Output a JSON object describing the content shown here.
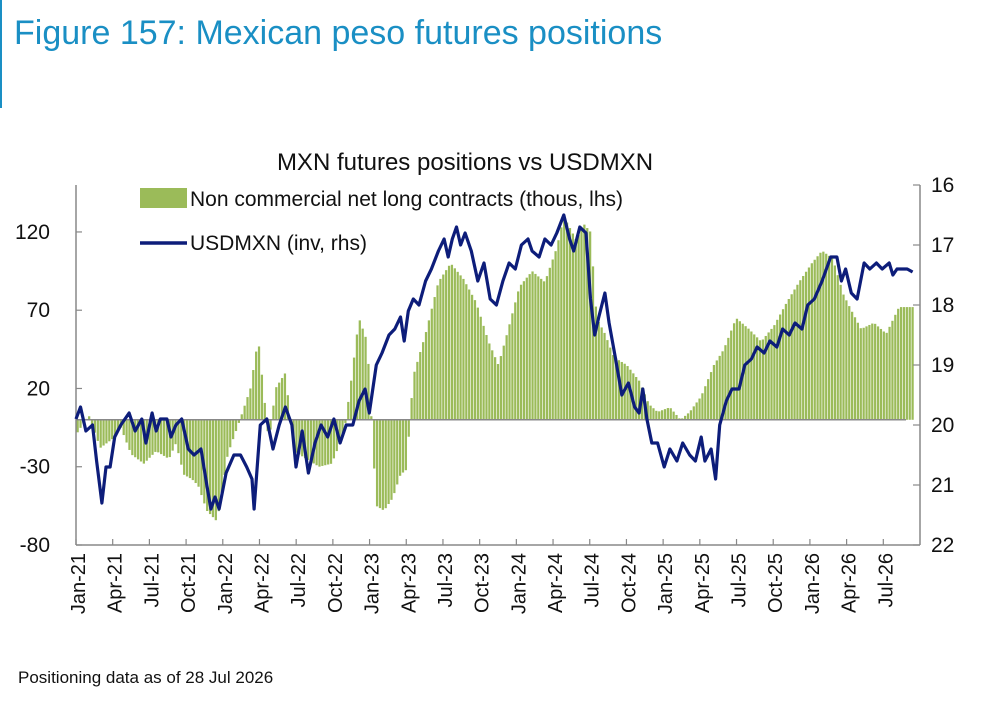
{
  "figure_title": "Figure 157: Mexican peso futures positions",
  "footnote": "Positioning data as of 28 Jul 2026",
  "colors": {
    "bars": "#9bbb59",
    "line": "#0d1d7a",
    "title": "#1a8fc4"
  },
  "chart_data": {
    "type": "bar+line",
    "title": "MXN futures positions  vs USDMXN",
    "legend": [
      "Non commercial net long contracts (thous, lhs)",
      "USDMXN (inv, rhs)"
    ],
    "legend_position": "top",
    "left_axis": {
      "min": -80,
      "max": 150,
      "ticks": [
        120,
        70,
        20,
        -30,
        -80
      ]
    },
    "right_axis": {
      "min": 16,
      "max": 22,
      "inverted": true,
      "ticks": [
        16,
        17,
        18,
        19,
        20,
        21,
        22
      ]
    },
    "x_ticks": [
      "Jan-21",
      "Apr-21",
      "Jul-21",
      "Oct-21",
      "Jan-22",
      "Apr-22",
      "Jul-22",
      "Oct-22",
      "Jan-23",
      "Apr-23",
      "Jul-23",
      "Oct-23",
      "Jan-24",
      "Apr-24",
      "Jul-24",
      "Oct-24",
      "Jan-25",
      "Apr-25",
      "Jul-25",
      "Oct-25",
      "Jan-26",
      "Apr-26",
      "Jul-26"
    ],
    "x_start": "2021-01-01",
    "x_end": "2026-08-15",
    "series": [
      {
        "name": "Non commercial net long contracts (thous, lhs)",
        "type": "bar",
        "points": [
          [
            "2021-01-05",
            -8
          ],
          [
            "2021-02-01",
            3
          ],
          [
            "2021-03-01",
            -18
          ],
          [
            "2021-04-01",
            -12
          ],
          [
            "2021-04-20",
            -5
          ],
          [
            "2021-05-15",
            -22
          ],
          [
            "2021-06-15",
            -28
          ],
          [
            "2021-07-15",
            -20
          ],
          [
            "2021-08-15",
            -25
          ],
          [
            "2021-09-01",
            -15
          ],
          [
            "2021-09-20",
            -35
          ],
          [
            "2021-10-10",
            -38
          ],
          [
            "2021-10-25",
            -42
          ],
          [
            "2021-11-15",
            -58
          ],
          [
            "2021-12-10",
            -65
          ],
          [
            "2022-01-05",
            -22
          ],
          [
            "2022-02-01",
            -2
          ],
          [
            "2022-03-01",
            20
          ],
          [
            "2022-03-20",
            52
          ],
          [
            "2022-04-15",
            -15
          ],
          [
            "2022-05-01",
            20
          ],
          [
            "2022-05-25",
            30
          ],
          [
            "2022-06-15",
            -20
          ],
          [
            "2022-07-15",
            -25
          ],
          [
            "2022-08-15",
            -30
          ],
          [
            "2022-09-15",
            -28
          ],
          [
            "2022-10-15",
            -8
          ],
          [
            "2022-11-01",
            25
          ],
          [
            "2022-11-20",
            65
          ],
          [
            "2022-12-10",
            50
          ],
          [
            "2023-01-01",
            -55
          ],
          [
            "2023-01-20",
            -58
          ],
          [
            "2023-02-10",
            -50
          ],
          [
            "2023-03-01",
            -35
          ],
          [
            "2023-03-15",
            -32
          ],
          [
            "2023-04-01",
            28
          ],
          [
            "2023-05-01",
            55
          ],
          [
            "2023-06-01",
            88
          ],
          [
            "2023-07-01",
            100
          ],
          [
            "2023-08-01",
            90
          ],
          [
            "2023-09-01",
            75
          ],
          [
            "2023-10-01",
            50
          ],
          [
            "2023-10-25",
            35
          ],
          [
            "2023-11-15",
            55
          ],
          [
            "2023-12-15",
            85
          ],
          [
            "2024-01-15",
            95
          ],
          [
            "2024-02-15",
            88
          ],
          [
            "2024-03-15",
            110
          ],
          [
            "2024-04-01",
            130
          ],
          [
            "2024-05-01",
            115
          ],
          [
            "2024-05-20",
            125
          ],
          [
            "2024-06-05",
            120
          ],
          [
            "2024-06-20",
            65
          ],
          [
            "2024-07-10",
            55
          ],
          [
            "2024-08-01",
            40
          ],
          [
            "2024-09-01",
            35
          ],
          [
            "2024-10-01",
            25
          ],
          [
            "2024-10-25",
            10
          ],
          [
            "2024-11-15",
            5
          ],
          [
            "2024-12-15",
            8
          ],
          [
            "2025-01-10",
            0
          ],
          [
            "2025-02-01",
            5
          ],
          [
            "2025-03-01",
            15
          ],
          [
            "2025-04-01",
            35
          ],
          [
            "2025-04-25",
            45
          ],
          [
            "2025-05-25",
            65
          ],
          [
            "2025-06-25",
            58
          ],
          [
            "2025-07-25",
            50
          ],
          [
            "2025-08-25",
            60
          ],
          [
            "2025-09-25",
            75
          ],
          [
            "2025-10-25",
            88
          ],
          [
            "2025-11-25",
            100
          ],
          [
            "2025-12-20",
            108
          ],
          [
            "2026-01-15",
            103
          ],
          [
            "2026-02-10",
            80
          ],
          [
            "2026-03-01",
            70
          ],
          [
            "2026-03-25",
            58
          ],
          [
            "2026-04-25",
            62
          ],
          [
            "2026-05-25",
            55
          ],
          [
            "2026-06-25",
            72
          ],
          [
            "2026-07-28",
            72
          ]
        ]
      },
      {
        "name": "USDMXN (inv, rhs)",
        "type": "line",
        "points": [
          [
            "2021-01-01",
            19.9
          ],
          [
            "2021-01-12",
            19.7
          ],
          [
            "2021-01-25",
            20.1
          ],
          [
            "2021-02-10",
            20.0
          ],
          [
            "2021-02-20",
            20.6
          ],
          [
            "2021-03-05",
            21.3
          ],
          [
            "2021-03-15",
            20.7
          ],
          [
            "2021-03-25",
            20.7
          ],
          [
            "2021-04-05",
            20.2
          ],
          [
            "2021-04-20",
            20.0
          ],
          [
            "2021-05-10",
            19.8
          ],
          [
            "2021-05-25",
            20.1
          ],
          [
            "2021-06-10",
            19.9
          ],
          [
            "2021-06-20",
            20.3
          ],
          [
            "2021-07-05",
            19.8
          ],
          [
            "2021-07-15",
            20.1
          ],
          [
            "2021-07-25",
            19.9
          ],
          [
            "2021-08-10",
            19.9
          ],
          [
            "2021-08-20",
            20.2
          ],
          [
            "2021-09-01",
            20.0
          ],
          [
            "2021-09-15",
            19.9
          ],
          [
            "2021-10-01",
            20.4
          ],
          [
            "2021-10-15",
            20.5
          ],
          [
            "2021-11-01",
            20.4
          ],
          [
            "2021-11-15",
            21.0
          ],
          [
            "2021-11-25",
            21.4
          ],
          [
            "2021-12-05",
            21.2
          ],
          [
            "2021-12-15",
            21.4
          ],
          [
            "2022-01-01",
            20.8
          ],
          [
            "2022-01-20",
            20.5
          ],
          [
            "2022-02-05",
            20.5
          ],
          [
            "2022-02-20",
            20.7
          ],
          [
            "2022-03-05",
            20.9
          ],
          [
            "2022-03-10",
            21.4
          ],
          [
            "2022-03-25",
            20.0
          ],
          [
            "2022-04-10",
            19.9
          ],
          [
            "2022-04-25",
            20.4
          ],
          [
            "2022-05-10",
            20.0
          ],
          [
            "2022-05-25",
            19.7
          ],
          [
            "2022-06-10",
            20.0
          ],
          [
            "2022-06-20",
            20.7
          ],
          [
            "2022-07-05",
            20.1
          ],
          [
            "2022-07-20",
            20.8
          ],
          [
            "2022-08-05",
            20.3
          ],
          [
            "2022-08-20",
            20.0
          ],
          [
            "2022-09-05",
            20.2
          ],
          [
            "2022-09-20",
            19.9
          ],
          [
            "2022-10-05",
            20.3
          ],
          [
            "2022-10-20",
            20.0
          ],
          [
            "2022-11-05",
            20.0
          ],
          [
            "2022-11-20",
            19.6
          ],
          [
            "2022-12-05",
            19.4
          ],
          [
            "2022-12-15",
            19.8
          ],
          [
            "2023-01-01",
            19.0
          ],
          [
            "2023-01-15",
            18.8
          ],
          [
            "2023-02-01",
            18.5
          ],
          [
            "2023-02-15",
            18.4
          ],
          [
            "2023-03-01",
            18.2
          ],
          [
            "2023-03-10",
            18.6
          ],
          [
            "2023-03-20",
            18.1
          ],
          [
            "2023-04-01",
            17.9
          ],
          [
            "2023-04-15",
            18.0
          ],
          [
            "2023-05-01",
            17.6
          ],
          [
            "2023-05-15",
            17.4
          ],
          [
            "2023-06-01",
            17.1
          ],
          [
            "2023-06-15",
            16.9
          ],
          [
            "2023-06-25",
            17.2
          ],
          [
            "2023-07-05",
            16.9
          ],
          [
            "2023-07-15",
            16.7
          ],
          [
            "2023-07-25",
            17.0
          ],
          [
            "2023-08-05",
            16.8
          ],
          [
            "2023-08-20",
            17.1
          ],
          [
            "2023-09-05",
            17.6
          ],
          [
            "2023-09-20",
            17.3
          ],
          [
            "2023-10-05",
            17.9
          ],
          [
            "2023-10-20",
            18.0
          ],
          [
            "2023-11-05",
            17.6
          ],
          [
            "2023-11-20",
            17.3
          ],
          [
            "2023-12-05",
            17.4
          ],
          [
            "2023-12-20",
            17.0
          ],
          [
            "2024-01-05",
            16.9
          ],
          [
            "2024-01-15",
            17.1
          ],
          [
            "2024-02-01",
            17.2
          ],
          [
            "2024-02-15",
            16.9
          ],
          [
            "2024-03-01",
            17.0
          ],
          [
            "2024-03-15",
            16.8
          ],
          [
            "2024-04-01",
            16.5
          ],
          [
            "2024-04-15",
            16.9
          ],
          [
            "2024-04-25",
            17.1
          ],
          [
            "2024-05-10",
            16.7
          ],
          [
            "2024-05-25",
            16.8
          ],
          [
            "2024-06-05",
            17.9
          ],
          [
            "2024-06-15",
            18.5
          ],
          [
            "2024-06-25",
            18.2
          ],
          [
            "2024-07-10",
            17.8
          ],
          [
            "2024-07-20",
            18.3
          ],
          [
            "2024-08-05",
            18.9
          ],
          [
            "2024-08-20",
            19.5
          ],
          [
            "2024-09-05",
            19.3
          ],
          [
            "2024-09-20",
            19.7
          ],
          [
            "2024-10-01",
            19.8
          ],
          [
            "2024-10-10",
            19.4
          ],
          [
            "2024-10-20",
            19.9
          ],
          [
            "2024-11-01",
            20.3
          ],
          [
            "2024-11-15",
            20.3
          ],
          [
            "2024-12-01",
            20.7
          ],
          [
            "2024-12-15",
            20.4
          ],
          [
            "2025-01-01",
            20.6
          ],
          [
            "2025-01-15",
            20.3
          ],
          [
            "2025-02-01",
            20.5
          ],
          [
            "2025-02-15",
            20.6
          ],
          [
            "2025-03-01",
            20.2
          ],
          [
            "2025-03-10",
            20.6
          ],
          [
            "2025-03-25",
            20.4
          ],
          [
            "2025-04-05",
            20.9
          ],
          [
            "2025-04-15",
            20.0
          ],
          [
            "2025-05-01",
            19.6
          ],
          [
            "2025-05-15",
            19.4
          ],
          [
            "2025-06-01",
            19.4
          ],
          [
            "2025-06-15",
            19.0
          ],
          [
            "2025-07-01",
            18.9
          ],
          [
            "2025-07-15",
            18.7
          ],
          [
            "2025-08-01",
            18.8
          ],
          [
            "2025-08-15",
            18.6
          ],
          [
            "2025-09-01",
            18.7
          ],
          [
            "2025-09-15",
            18.4
          ],
          [
            "2025-10-01",
            18.5
          ],
          [
            "2025-10-15",
            18.3
          ],
          [
            "2025-11-01",
            18.4
          ],
          [
            "2025-11-15",
            18.0
          ],
          [
            "2025-12-01",
            17.9
          ],
          [
            "2025-12-20",
            17.6
          ],
          [
            "2026-01-10",
            17.2
          ],
          [
            "2026-01-25",
            17.2
          ],
          [
            "2026-02-05",
            17.6
          ],
          [
            "2026-02-15",
            17.4
          ],
          [
            "2026-03-01",
            17.8
          ],
          [
            "2026-03-15",
            17.9
          ],
          [
            "2026-04-01",
            17.3
          ],
          [
            "2026-04-15",
            17.4
          ],
          [
            "2026-05-01",
            17.3
          ],
          [
            "2026-05-15",
            17.4
          ],
          [
            "2026-06-01",
            17.3
          ],
          [
            "2026-06-10",
            17.5
          ],
          [
            "2026-06-20",
            17.4
          ],
          [
            "2026-07-01",
            17.4
          ],
          [
            "2026-07-15",
            17.4
          ],
          [
            "2026-07-28",
            17.45
          ]
        ]
      }
    ]
  }
}
